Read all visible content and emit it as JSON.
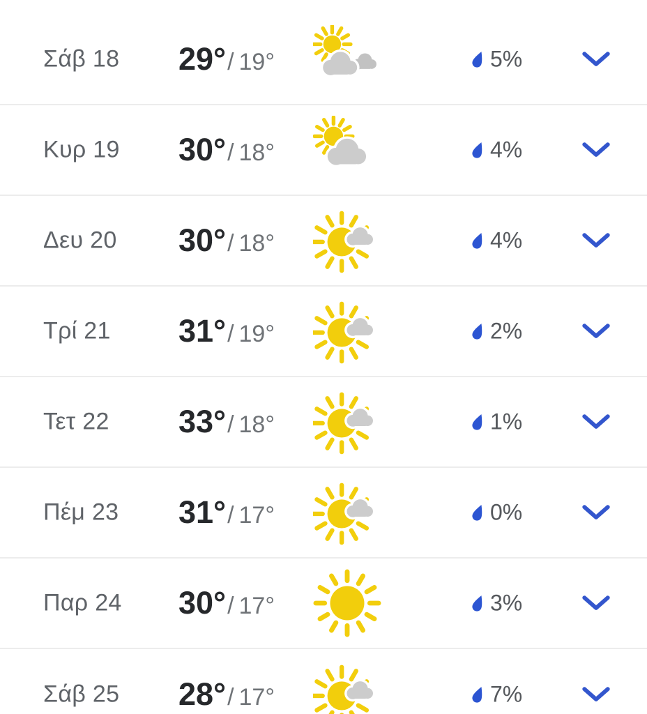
{
  "app": {
    "name": "weather-daily-forecast"
  },
  "colors": {
    "background": "#ffffff",
    "divider": "#ececec",
    "day_text": "#5f6368",
    "high_temp": "#26282b",
    "low_temp": "#6f7377",
    "precip_text": "#55585c",
    "chevron_blue": "#3356cd",
    "drop_blue": "#2c55d2",
    "sun_yellow": "#f2ce0c",
    "cloud_light": "#cccccc",
    "cloud_mid": "#c2c2c2"
  },
  "forecast": {
    "slash": "/",
    "icon_names": {
      "expand": "chevron-down-icon",
      "precipitation": "raindrop-icon"
    },
    "rows": [
      {
        "day": "Σάβ 18",
        "high": "29°",
        "low": "19°",
        "icon": "sun-behind-two-clouds",
        "precip": "5%"
      },
      {
        "day": "Κυρ 19",
        "high": "30°",
        "low": "18°",
        "icon": "sun-behind-cloud",
        "precip": "4%"
      },
      {
        "day": "Δευ 20",
        "high": "30°",
        "low": "18°",
        "icon": "mostly-sunny",
        "precip": "4%"
      },
      {
        "day": "Τρί 21",
        "high": "31°",
        "low": "19°",
        "icon": "mostly-sunny",
        "precip": "2%"
      },
      {
        "day": "Τετ 22",
        "high": "33°",
        "low": "18°",
        "icon": "mostly-sunny",
        "precip": "1%"
      },
      {
        "day": "Πέμ 23",
        "high": "31°",
        "low": "17°",
        "icon": "mostly-sunny",
        "precip": "0%"
      },
      {
        "day": "Παρ 24",
        "high": "30°",
        "low": "17°",
        "icon": "sunny",
        "precip": "3%"
      },
      {
        "day": "Σάβ 25",
        "high": "28°",
        "low": "17°",
        "icon": "mostly-sunny",
        "precip": "7%"
      }
    ]
  }
}
